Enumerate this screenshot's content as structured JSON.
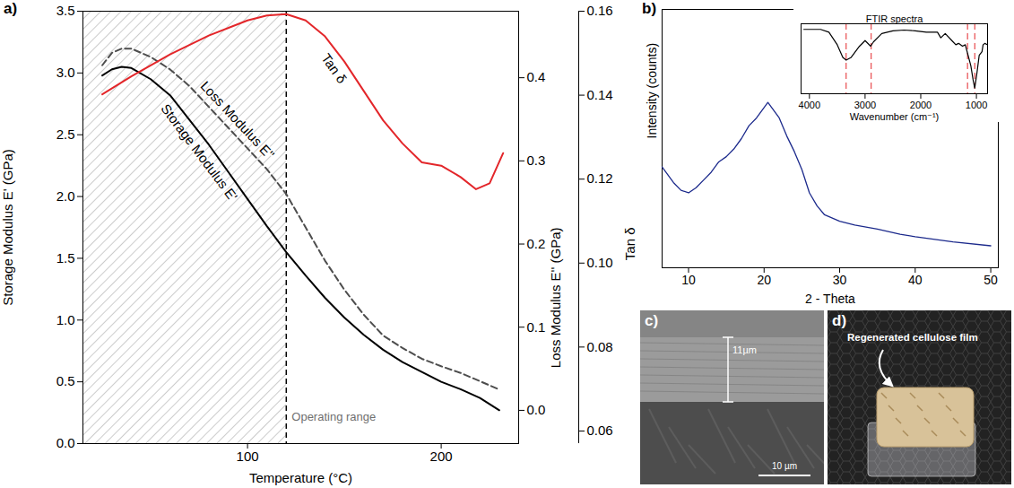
{
  "chart_data": [
    {
      "panel": "a)",
      "type": "line",
      "x_label": "Temperature (°C)",
      "y_label": "Storage Modulus E' (GPa)",
      "y2_label": "Loss Modulus E'' (GPa)",
      "y3_label": "Tan δ",
      "xlim": [
        15,
        240
      ],
      "xticks": [
        100,
        200
      ],
      "ylim": [
        0,
        3.5
      ],
      "yticks": [
        {
          "value": 0,
          "label": "0.0"
        },
        0.5,
        {
          "value": 1,
          "label": "1.0"
        },
        1.5,
        {
          "value": 2,
          "label": "2.0"
        },
        2.5,
        {
          "value": 3,
          "label": "3.0"
        },
        3.5
      ],
      "y2lim": [
        -0.04,
        0.48
      ],
      "y2ticks": [
        {
          "value": 0,
          "label": "0.0"
        },
        0.1,
        0.2,
        0.3,
        0.4
      ],
      "y3lim": [
        0.057,
        0.16
      ],
      "y3ticks": [
        0.06,
        0.08,
        {
          "value": 0.1,
          "label": "0.10"
        },
        0.12,
        0.14,
        0.16
      ],
      "series": [
        {
          "name": "Storage Modulus E'",
          "color": "#000000",
          "line_style": "solid",
          "axis": "y",
          "x": [
            25,
            30,
            35,
            40,
            50,
            60,
            70,
            80,
            90,
            100,
            110,
            120,
            130,
            140,
            150,
            160,
            170,
            180,
            190,
            200,
            210,
            220,
            230
          ],
          "values": [
            2.98,
            3.03,
            3.05,
            3.04,
            2.95,
            2.82,
            2.62,
            2.42,
            2.2,
            1.98,
            1.76,
            1.55,
            1.36,
            1.18,
            1.02,
            0.88,
            0.76,
            0.66,
            0.58,
            0.5,
            0.44,
            0.37,
            0.27
          ]
        },
        {
          "name": "Loss Modulus E''",
          "color": "#4d4d4d",
          "line_style": "dashed",
          "axis": "y2",
          "x": [
            25,
            30,
            35,
            40,
            50,
            60,
            70,
            80,
            90,
            100,
            110,
            120,
            130,
            140,
            150,
            160,
            170,
            180,
            190,
            200,
            210,
            220,
            230
          ],
          "values": [
            0.415,
            0.43,
            0.435,
            0.435,
            0.425,
            0.41,
            0.39,
            0.365,
            0.34,
            0.315,
            0.29,
            0.26,
            0.22,
            0.18,
            0.145,
            0.115,
            0.09,
            0.075,
            0.062,
            0.053,
            0.045,
            0.035,
            0.025
          ]
        },
        {
          "name": "Tan δ",
          "color": "#e3262a",
          "line_style": "solid",
          "axis": "y3",
          "x": [
            25,
            40,
            60,
            80,
            100,
            110,
            120,
            130,
            140,
            150,
            160,
            170,
            180,
            190,
            200,
            210,
            218,
            225,
            232
          ],
          "values": [
            0.1402,
            0.1445,
            0.1497,
            0.1542,
            0.1578,
            0.159,
            0.1593,
            0.1578,
            0.154,
            0.148,
            0.141,
            0.134,
            0.1285,
            0.124,
            0.1232,
            0.1205,
            0.1176,
            0.119,
            0.1262
          ]
        }
      ],
      "annotation": {
        "text": "Operating range",
        "x": 120
      }
    },
    {
      "panel": "b)",
      "type": "line",
      "x_label": "2 - Theta",
      "y_label": "Intensity (counts)",
      "xlim": [
        6.5,
        51
      ],
      "xticks": [
        10,
        20,
        30,
        40,
        50
      ],
      "ylim": [
        0,
        100
      ],
      "tick_labels": "x",
      "color": "#1c2a8c",
      "x": [
        6.5,
        7,
        8,
        9,
        10,
        11,
        12,
        13,
        14,
        15,
        16,
        17,
        18,
        19,
        20,
        20.5,
        21,
        22,
        23,
        24,
        25,
        26,
        27,
        28,
        30,
        32,
        35,
        38,
        40,
        45,
        50
      ],
      "values": [
        39,
        37,
        33,
        30,
        29,
        31,
        34,
        37,
        41,
        43,
        46,
        50,
        55,
        58,
        62,
        64,
        62,
        58,
        51,
        45,
        38,
        29,
        24,
        20.5,
        18,
        16.5,
        15,
        13,
        12,
        10,
        8.5
      ],
      "inset": {
        "type": "line",
        "title": "FTIR spectra",
        "x_label": "Wavenumber (cm⁻¹)",
        "xlim": [
          4150,
          800
        ],
        "xticks": [
          4000,
          3000,
          2000,
          1000
        ],
        "ylim": [
          0,
          100
        ],
        "tick_labels": "x",
        "color": "#000000",
        "x": [
          4100,
          4000,
          3800,
          3650,
          3500,
          3400,
          3340,
          3250,
          3100,
          3000,
          2900,
          2850,
          2700,
          2500,
          2300,
          2100,
          1900,
          1700,
          1640,
          1560,
          1430,
          1370,
          1320,
          1250,
          1200,
          1160,
          1100,
          1060,
          1030,
          990,
          950,
          900,
          880,
          850,
          800
        ],
        "values": [
          92,
          92,
          92,
          88,
          70,
          52,
          48,
          52,
          68,
          76,
          68,
          74,
          86,
          90,
          91,
          90,
          88,
          88,
          80,
          86,
          75,
          70,
          72,
          68,
          70,
          58,
          40,
          20,
          8,
          30,
          55,
          60,
          70,
          72,
          70
        ],
        "reference_lines": {
          "x": [
            3340,
            2890,
            1160,
            1030
          ],
          "color": "#e3262a",
          "line_style": "dashed"
        }
      }
    }
  ],
  "images": [
    {
      "panel": "c)",
      "thickness_label": "11µm",
      "scale_bar": "10 µm"
    },
    {
      "panel": "d)",
      "label": "Regenerated cellulose film"
    }
  ]
}
